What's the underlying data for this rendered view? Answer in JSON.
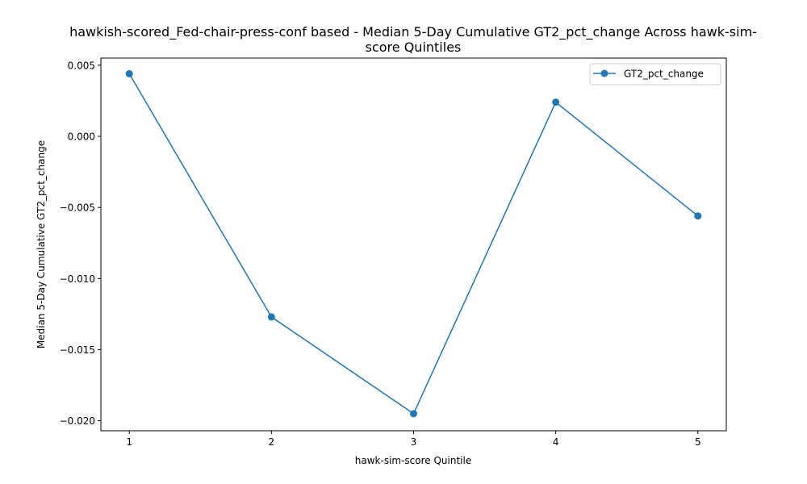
{
  "chart_data": {
    "type": "line",
    "title_lines": [
      "hawkish-scored_Fed-chair-press-conf based - Median 5-Day Cumulative GT2_pct_change Across hawk-sim-",
      "score Quintiles"
    ],
    "xlabel": "hawk-sim-score Quintile",
    "ylabel": "Median 5-Day Cumulative GT2_pct_change",
    "x": [
      1,
      2,
      3,
      4,
      5
    ],
    "x_tick_labels": [
      "1",
      "2",
      "3",
      "4",
      "5"
    ],
    "y_ticks": [
      0.005,
      0.0,
      -0.005,
      -0.01,
      -0.015,
      -0.02
    ],
    "y_tick_labels": [
      "0.005",
      "0.000",
      "−0.005",
      "−0.010",
      "−0.015",
      "−0.020"
    ],
    "xlim": [
      0.8,
      5.2
    ],
    "ylim": [
      -0.0207,
      0.0055
    ],
    "grid": false,
    "legend_position": "top-right",
    "series": [
      {
        "name": "GT2_pct_change",
        "color": "#1f77b4",
        "marker": "circle",
        "values": [
          0.0044,
          -0.0127,
          -0.0195,
          0.0024,
          -0.0056
        ]
      }
    ]
  }
}
